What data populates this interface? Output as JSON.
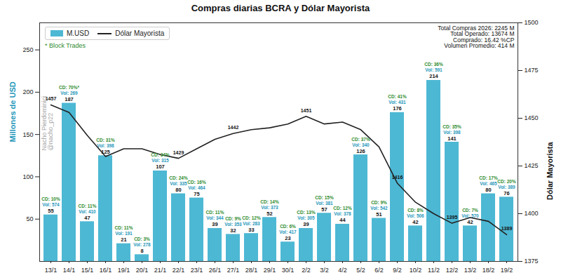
{
  "chart_data": {
    "type": "bar",
    "title": "Compras diarias BCRA y Dólar Mayorista",
    "categories": [
      "13/1",
      "14/1",
      "15/1",
      "16/1",
      "19/1",
      "20/1",
      "21/1",
      "22/1",
      "23/1",
      "26/1",
      "27/1",
      "28/1",
      "29/1",
      "30/1",
      "2/2",
      "3/2",
      "4/2",
      "5/2",
      "6/2",
      "9/2",
      "10/2",
      "11/2",
      "12/2",
      "13/2",
      "18/2",
      "19/2"
    ],
    "series": [
      {
        "name": "M.USD",
        "type": "bar",
        "color": "#4db8d4",
        "values": [
          55,
          187,
          47,
          125,
          21,
          8,
          107,
          80,
          75,
          39,
          32,
          33,
          52,
          23,
          39,
          57,
          44,
          126,
          51,
          176,
          42,
          214,
          141,
          42,
          80,
          76
        ],
        "data_labels": true,
        "cd_labels": [
          "CD: 10%",
          "CD: 70%*",
          "CD: 11%",
          "CD: 31%",
          "CD: 11%",
          "CD: 3%",
          "CD: 34%",
          "CD: 24%",
          "CD: 16%",
          "CD: 11%",
          "CD: 9%",
          "CD: 12%",
          "CD: 14%",
          "CD: 6%",
          "CD: 13%",
          "CD: 15%",
          "CD: 12%",
          "CD: 37%",
          "CD: 9%",
          "CD: 41%",
          "CD: 8%",
          "CD: 36%",
          "CD: 35%",
          "CD: 7%",
          "CD: 17%",
          "CD: 20%"
        ],
        "vol_labels": [
          "Vol: 574",
          "Vol: 269",
          "Vol: 410",
          "Vol: 398",
          "Vol: 191",
          "Vol: 278",
          "Vol: 315",
          "Vol: 335",
          "Vol: 464",
          "Vol: 344",
          "Vol: 353",
          "Vol: 283",
          "Vol: 373",
          "Vol: 417",
          "Vol: 305",
          "Vol: 381",
          "Vol: 378",
          "Vol: 340",
          "Vol: 542",
          "Vol: 431",
          "Vol: 506",
          "Vol: 591",
          "Vol: 398",
          "Vol: 570",
          "Vol: 465",
          "Vol: 389"
        ]
      },
      {
        "name": "Dólar Mayorista",
        "type": "line",
        "axis": "y2",
        "color": "#222222",
        "values": [
          1457,
          1453,
          1441,
          1430,
          1434,
          1434,
          1431,
          1429,
          1434,
          1439,
          1442,
          1444,
          1445,
          1447,
          1451,
          1447,
          1448,
          1444,
          1435,
          1416,
          1406,
          1400,
          1395,
          1398,
          1396,
          1389
        ],
        "point_labels": [
          "1457",
          null,
          null,
          null,
          null,
          null,
          null,
          "1429",
          null,
          null,
          "1442",
          null,
          null,
          null,
          "1451",
          null,
          null,
          null,
          null,
          "1416",
          null,
          null,
          "1395",
          null,
          null,
          "1389"
        ]
      }
    ],
    "ylabel": "Millones de USD",
    "y2label": "Dólar Mayorista",
    "ylim": [
      0,
      282
    ],
    "yticks": [
      50,
      100,
      150,
      200,
      250
    ],
    "y2lim": [
      1375,
      1500
    ],
    "y2ticks": [
      1375,
      1400,
      1425,
      1450,
      1475,
      1500
    ],
    "legend": "upper left",
    "legend_note": "* Block Trades",
    "annotations": [
      "Total Compras 2026: 2245 M",
      "Total Operado: 13674 M",
      "Comprado: 16.42 %CP",
      "Volumen Promedio: 414 M"
    ],
    "watermark": [
      "Nacho Pierdominici",
      "@nacho_p22"
    ],
    "grid": false
  }
}
